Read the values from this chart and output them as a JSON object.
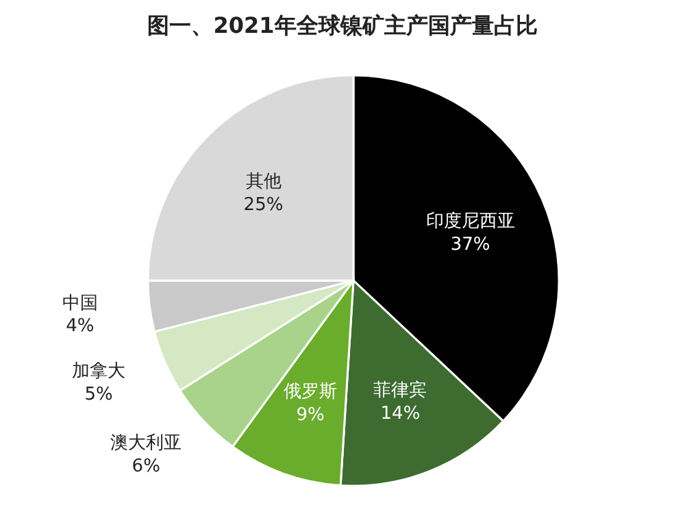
{
  "chart_data": {
    "type": "pie",
    "title": "图一、2021年全球镍矿主产国产量占比",
    "categories": [
      "印度尼西亚",
      "菲律宾",
      "俄罗斯",
      "澳大利亚",
      "加拿大",
      "中国",
      "其他"
    ],
    "values": [
      37,
      14,
      9,
      6,
      5,
      4,
      25
    ],
    "value_labels": [
      "37%",
      "14%",
      "9%",
      "6%",
      "5%",
      "4%",
      "25%"
    ],
    "colors": [
      "#000000",
      "#3d6b30",
      "#6aac2c",
      "#a9d38a",
      "#d3e8c3",
      "#c9c9c9",
      "#d9d9d9"
    ]
  }
}
